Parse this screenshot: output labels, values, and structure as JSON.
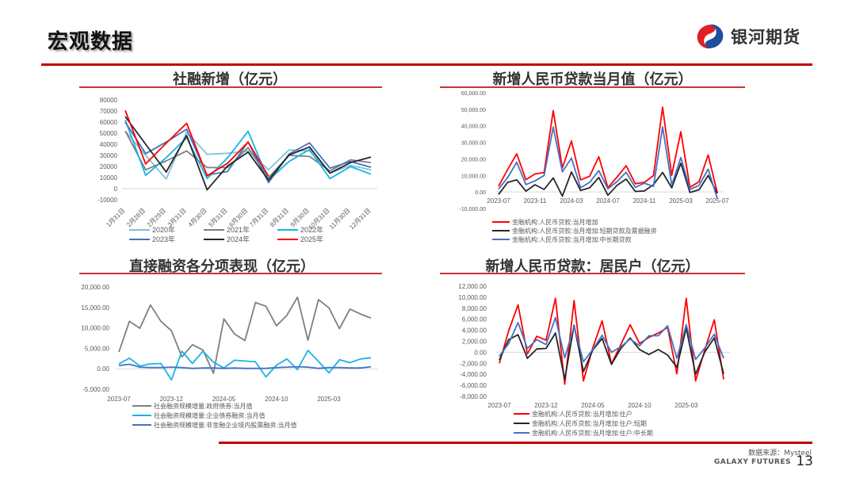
{
  "header": {
    "title": "宏观数据",
    "logo_text": "银河期货",
    "brand_colors": {
      "red": "#c00000",
      "blue": "#1f4e9c",
      "logo_red": "#e31e24"
    }
  },
  "footer": {
    "source": "数据来源：Mysteel",
    "company": "GALAXY FUTURES",
    "page_number": "13"
  },
  "panels": {
    "tsf": {
      "title": "社融新增（亿元）"
    },
    "loans": {
      "title": "新增人民币贷款当月值（亿元）"
    },
    "direct": {
      "title": "直接融资各分项表现（亿元）"
    },
    "household": {
      "title": "新增人民币贷款：居民户（亿元）"
    }
  },
  "chart_data": [
    {
      "id": "tsf",
      "type": "line",
      "title": "社融新增（亿元）",
      "xlabel": "",
      "ylabel": "",
      "ylim": [
        -10000,
        80000
      ],
      "yticks": [
        80000,
        70000,
        60000,
        50000,
        40000,
        30000,
        20000,
        10000,
        0,
        -10000
      ],
      "categories": [
        "1月31日",
        "2月28日",
        "2月29日",
        "3月31日",
        "4月30日",
        "5月31日",
        "6月30日",
        "7月31日",
        "8月31日",
        "9月30日",
        "10月31日",
        "11月30日",
        "12月31日"
      ],
      "legend_position": "bottom",
      "grid": false,
      "series": [
        {
          "name": "2020年",
          "color": "#7fc4dd",
          "values": [
            52000,
            30000,
            8700,
            51000,
            31000,
            31900,
            34000,
            17000,
            35000,
            34000,
            14000,
            21000,
            17000
          ]
        },
        {
          "name": "2021年",
          "color": "#7f7f7f",
          "values": [
            52000,
            17000,
            25000,
            34000,
            19000,
            19000,
            37000,
            10000,
            30000,
            29000,
            16000,
            26000,
            23500
          ]
        },
        {
          "name": "2022年",
          "color": "#1ab3e6",
          "values": [
            62000,
            12000,
            28000,
            46000,
            9100,
            27900,
            51700,
            7600,
            24500,
            35300,
            9100,
            19900,
            13100
          ]
        },
        {
          "name": "2023年",
          "color": "#4472c4",
          "values": [
            60000,
            31600,
            42000,
            53600,
            12200,
            15600,
            42200,
            5400,
            31200,
            41300,
            18500,
            24500,
            19300
          ]
        },
        {
          "name": "2024年",
          "color": "#262626",
          "values": [
            65000,
            40000,
            15000,
            48000,
            -1000,
            20600,
            32900,
            7700,
            30300,
            37600,
            14000,
            23500,
            28500
          ]
        },
        {
          "name": "2025年",
          "color": "#ff0000",
          "values": [
            70600,
            22300,
            41000,
            58900,
            11600,
            22900,
            42000,
            11300
          ]
        }
      ]
    },
    {
      "id": "loans",
      "type": "line",
      "title": "新增人民币贷款当月值（亿元）",
      "ylim": [
        -10000,
        60000
      ],
      "yticks": [
        "60,000.00",
        "50,000.00",
        "40,000.00",
        "30,000.00",
        "20,000.00",
        "10,000.00",
        "0.00",
        "-10,000.00"
      ],
      "x_ticks": [
        "2023-07",
        "2023-11",
        "2024-03",
        "2024-07",
        "2024-11",
        "2025-03",
        "2025-07"
      ],
      "x": [
        "2023-07",
        "2023-08",
        "2023-09",
        "2023-10",
        "2023-11",
        "2023-12",
        "2024-01",
        "2024-02",
        "2024-03",
        "2024-04",
        "2024-05",
        "2024-06",
        "2024-07",
        "2024-08",
        "2024-09",
        "2024-10",
        "2024-11",
        "2024-12",
        "2025-01",
        "2025-02",
        "2025-03",
        "2025-04",
        "2025-05",
        "2025-06",
        "2025-07"
      ],
      "legend_position": "bottom",
      "series": [
        {
          "name": "金融机构:人民币贷款:当月增加",
          "color": "#ff0000",
          "values": [
            3459,
            13600,
            23100,
            7384,
            10900,
            11700,
            49200,
            14500,
            30900,
            7300,
            9500,
            21300,
            2600,
            9000,
            15900,
            5000,
            5800,
            9900,
            51300,
            10100,
            36400,
            2800,
            6200,
            22400,
            -500
          ]
        },
        {
          "name": "金融机构:人民币贷款:当月增加:短期贷款及票据融资",
          "color": "#262626",
          "values": [
            -1500,
            5800,
            7300,
            500,
            4400,
            1500,
            8500,
            -2500,
            12100,
            900,
            2500,
            8800,
            -2000,
            4000,
            7800,
            300,
            600,
            4500,
            11800,
            2500,
            17400,
            -300,
            1300,
            10000,
            -900
          ]
        },
        {
          "name": "金融机构:人民币贷款:当月增加:中长期贷款",
          "color": "#4472c4",
          "values": [
            1800,
            8700,
            18000,
            4500,
            6700,
            10000,
            39300,
            12200,
            20500,
            2500,
            5800,
            12900,
            1900,
            6300,
            11900,
            2800,
            5300,
            3400,
            39300,
            4200,
            20800,
            1500,
            4000,
            13800,
            -4000
          ]
        }
      ]
    },
    {
      "id": "direct",
      "type": "line",
      "title": "直接融资各分项表现（亿元）",
      "ylim": [
        -5000,
        20000
      ],
      "yticks": [
        "20,000.00",
        "15,000.00",
        "10,000.00",
        "5,000.00",
        "0.00",
        "-5,000.00"
      ],
      "x_ticks": [
        "2023-07",
        "2023-12",
        "2024-05",
        "2024-10",
        "2025-03"
      ],
      "x": [
        "2023-07",
        "2023-08",
        "2023-09",
        "2023-10",
        "2023-11",
        "2023-12",
        "2024-01",
        "2024-02",
        "2024-03",
        "2024-04",
        "2024-05",
        "2024-06",
        "2024-07",
        "2024-08",
        "2024-09",
        "2024-10",
        "2024-11",
        "2024-12",
        "2025-01",
        "2025-02",
        "2025-03",
        "2025-04",
        "2025-05",
        "2025-06",
        "2025-07"
      ],
      "legend_position": "bottom",
      "series": [
        {
          "name": "社会融资规模增量:政府债券:当月值",
          "color": "#7f7f7f",
          "values": [
            4100,
            11600,
            9900,
            15600,
            11600,
            9300,
            2900,
            5900,
            4600,
            -1100,
            12200,
            8500,
            6900,
            16200,
            15300,
            10500,
            13100,
            17500,
            7000,
            16900,
            14900,
            9800,
            14600,
            13400,
            12400
          ]
        },
        {
          "name": "社会融资规模增量:企业债券融资:当月值",
          "color": "#1ab3e6",
          "values": [
            1200,
            2600,
            700,
            1200,
            1300,
            -2700,
            4300,
            1300,
            4300,
            1600,
            200,
            2100,
            1900,
            1700,
            -2000,
            900,
            2400,
            -200,
            4500,
            1800,
            -1000,
            2200,
            1500,
            2400,
            2700
          ]
        },
        {
          "name": "社会融资规模增量:非金融企业境内股票融资:当月值",
          "color": "#4472c4",
          "values": [
            800,
            1100,
            400,
            300,
            300,
            400,
            300,
            100,
            200,
            200,
            100,
            200,
            100,
            100,
            100,
            300,
            400,
            500,
            400,
            100,
            300,
            300,
            200,
            200,
            500
          ]
        }
      ]
    },
    {
      "id": "household",
      "type": "line",
      "title": "新增人民币贷款：居民户（亿元）",
      "ylim": [
        -8000,
        12000
      ],
      "yticks": [
        "12,000.00",
        "10,000.00",
        "8,000.00",
        "6,000.00",
        "4,000.00",
        "2,000.00",
        "0.00",
        "-2,000.00",
        "-4,000.00",
        "-6,000.00",
        "-8,000.00"
      ],
      "x_ticks": [
        "2023-07",
        "2023-12",
        "2024-05",
        "2024-10",
        "2025-03"
      ],
      "x": [
        "2023-07",
        "2023-08",
        "2023-09",
        "2023-10",
        "2023-11",
        "2023-12",
        "2024-01",
        "2024-02",
        "2024-03",
        "2024-04",
        "2024-05",
        "2024-06",
        "2024-07",
        "2024-08",
        "2024-09",
        "2024-10",
        "2024-11",
        "2024-12",
        "2025-01",
        "2025-02",
        "2025-03",
        "2025-04",
        "2025-05",
        "2025-06",
        "2025-07"
      ],
      "legend_position": "bottom",
      "series": [
        {
          "name": "金融机构:人民币贷款:当月增加:住户",
          "color": "#ff0000",
          "values": [
            -2000,
            3900,
            8600,
            -300,
            2900,
            2200,
            9800,
            -5800,
            9400,
            -5200,
            800,
            5700,
            -2100,
            1400,
            5000,
            1600,
            2700,
            3500,
            4500,
            -3900,
            9800,
            -5200,
            500,
            5900,
            -4900
          ]
        },
        {
          "name": "金融机构:人民币贷款:当月增加:住户:短期",
          "color": "#262626",
          "values": [
            -1400,
            2300,
            3200,
            -1100,
            600,
            700,
            3500,
            -4900,
            4900,
            -3500,
            400,
            2500,
            -2200,
            700,
            2600,
            500,
            -400,
            500,
            -500,
            -2700,
            4400,
            -4000,
            100,
            2600,
            -3900
          ]
        },
        {
          "name": "金融机构:人民币贷款:当月增加:住户:中长期",
          "color": "#4472c4",
          "values": [
            -700,
            1600,
            5400,
            700,
            2300,
            1400,
            6300,
            -1000,
            4700,
            -1700,
            500,
            3100,
            0,
            1000,
            2400,
            1200,
            3000,
            3000,
            4800,
            -1100,
            5000,
            -1300,
            800,
            3300,
            -1100
          ]
        }
      ]
    }
  ]
}
